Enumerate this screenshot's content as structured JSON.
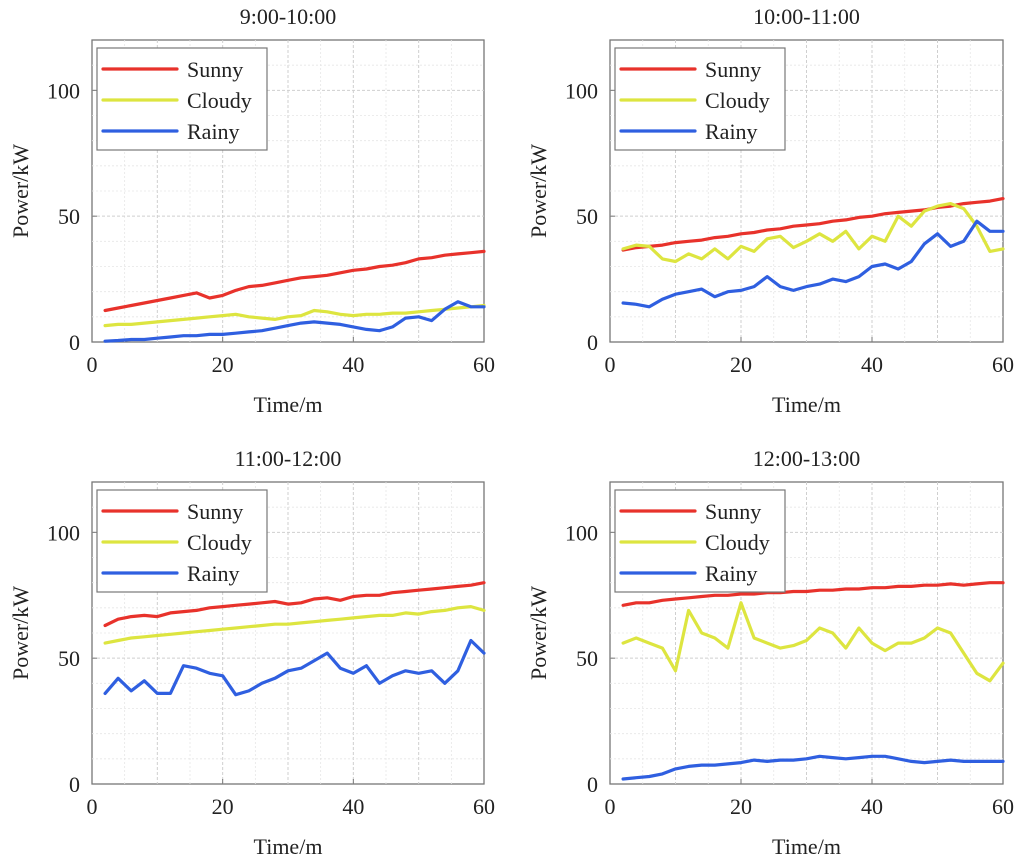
{
  "colors": {
    "Sunny": "#e8322b",
    "Cloudy": "#dde540",
    "Rainy": "#2f5fe0"
  },
  "chart_data": [
    {
      "type": "line",
      "title": "9:00-10:00",
      "xlabel": "Time/m",
      "ylabel": "Power/kW",
      "xlim": [
        0,
        60
      ],
      "ylim": [
        0,
        120
      ],
      "xticks": [
        0,
        20,
        40,
        60
      ],
      "yticks": [
        0,
        50,
        100
      ],
      "grid": true,
      "legend": "top-left",
      "series": [
        {
          "name": "Sunny",
          "x": [
            2,
            4,
            6,
            8,
            10,
            12,
            14,
            16,
            18,
            20,
            22,
            24,
            26,
            28,
            30,
            32,
            34,
            36,
            38,
            40,
            42,
            44,
            46,
            48,
            50,
            52,
            54,
            56,
            58,
            60
          ],
          "values": [
            12.5,
            13.5,
            14.5,
            15.5,
            16.5,
            17.5,
            18.5,
            19.5,
            17.5,
            18.5,
            20.5,
            22,
            22.5,
            23.5,
            24.5,
            25.5,
            26,
            26.5,
            27.5,
            28.5,
            29,
            30,
            30.5,
            31.5,
            33,
            33.5,
            34.5,
            35,
            35.5,
            36
          ]
        },
        {
          "name": "Cloudy",
          "x": [
            2,
            4,
            6,
            8,
            10,
            12,
            14,
            16,
            18,
            20,
            22,
            24,
            26,
            28,
            30,
            32,
            34,
            36,
            38,
            40,
            42,
            44,
            46,
            48,
            50,
            52,
            54,
            56,
            58,
            60
          ],
          "values": [
            6.5,
            7,
            7,
            7.5,
            8,
            8.5,
            9,
            9.5,
            10,
            10.5,
            11,
            10,
            9.5,
            9,
            10,
            10.5,
            12.5,
            12,
            11,
            10.5,
            11,
            11,
            11.5,
            11.5,
            12,
            12.5,
            13,
            13.5,
            14,
            14.5
          ]
        },
        {
          "name": "Rainy",
          "x": [
            2,
            4,
            6,
            8,
            10,
            12,
            14,
            16,
            18,
            20,
            22,
            24,
            26,
            28,
            30,
            32,
            34,
            36,
            38,
            40,
            42,
            44,
            46,
            48,
            50,
            52,
            54,
            56,
            58,
            60
          ],
          "values": [
            0.3,
            0.6,
            1,
            1,
            1.5,
            2,
            2.5,
            2.5,
            3,
            3,
            3.5,
            4,
            4.5,
            5.5,
            6.5,
            7.5,
            8,
            7.5,
            7,
            6,
            5,
            4.5,
            6,
            9.5,
            10,
            8.5,
            13,
            16,
            14,
            14
          ]
        }
      ]
    },
    {
      "type": "line",
      "title": "10:00-11:00",
      "xlabel": "Time/m",
      "ylabel": "Power/kW",
      "xlim": [
        0,
        60
      ],
      "ylim": [
        0,
        120
      ],
      "xticks": [
        0,
        20,
        40,
        60
      ],
      "yticks": [
        0,
        50,
        100
      ],
      "grid": true,
      "legend": "top-left",
      "series": [
        {
          "name": "Sunny",
          "x": [
            2,
            4,
            6,
            8,
            10,
            12,
            14,
            16,
            18,
            20,
            22,
            24,
            26,
            28,
            30,
            32,
            34,
            36,
            38,
            40,
            42,
            44,
            46,
            48,
            50,
            52,
            54,
            56,
            58,
            60
          ],
          "values": [
            36.5,
            37.5,
            38,
            38.5,
            39.5,
            40,
            40.5,
            41.5,
            42,
            43,
            43.5,
            44.5,
            45,
            46,
            46.5,
            47,
            48,
            48.5,
            49.5,
            50,
            51,
            51.5,
            52,
            52.5,
            53.5,
            54,
            55,
            55.5,
            56,
            57
          ]
        },
        {
          "name": "Cloudy",
          "x": [
            2,
            4,
            6,
            8,
            10,
            12,
            14,
            16,
            18,
            20,
            22,
            24,
            26,
            28,
            30,
            32,
            34,
            36,
            38,
            40,
            42,
            44,
            46,
            48,
            50,
            52,
            54,
            56,
            58,
            60
          ],
          "values": [
            37,
            38.5,
            38,
            33,
            32,
            35,
            33,
            37,
            33,
            38,
            36,
            41,
            42,
            37.5,
            40,
            43,
            40,
            44,
            37,
            42,
            40,
            50,
            46,
            52,
            54,
            55,
            53,
            46,
            36,
            37
          ]
        },
        {
          "name": "Rainy",
          "x": [
            2,
            4,
            6,
            8,
            10,
            12,
            14,
            16,
            18,
            20,
            22,
            24,
            26,
            28,
            30,
            32,
            34,
            36,
            38,
            40,
            42,
            44,
            46,
            48,
            50,
            52,
            54,
            56,
            58,
            60
          ],
          "values": [
            15.5,
            15,
            14,
            17,
            19,
            20,
            21,
            18,
            20,
            20.5,
            22,
            26,
            22,
            20.5,
            22,
            23,
            25,
            24,
            26,
            30,
            31,
            29,
            32,
            39,
            43,
            38,
            40,
            48,
            44,
            44
          ]
        }
      ]
    },
    {
      "type": "line",
      "title": "11:00-12:00",
      "xlabel": "Time/m",
      "ylabel": "Power/kW",
      "xlim": [
        0,
        60
      ],
      "ylim": [
        0,
        120
      ],
      "xticks": [
        0,
        20,
        40,
        60
      ],
      "yticks": [
        0,
        50,
        100
      ],
      "grid": true,
      "legend": "top-left",
      "series": [
        {
          "name": "Sunny",
          "x": [
            2,
            4,
            6,
            8,
            10,
            12,
            14,
            16,
            18,
            20,
            22,
            24,
            26,
            28,
            30,
            32,
            34,
            36,
            38,
            40,
            42,
            44,
            46,
            48,
            50,
            52,
            54,
            56,
            58,
            60
          ],
          "values": [
            63,
            65.5,
            66.5,
            67,
            66.5,
            68,
            68.5,
            69,
            70,
            70.5,
            71,
            71.5,
            72,
            72.5,
            71.5,
            72,
            73.5,
            74,
            73,
            74.5,
            75,
            75,
            76,
            76.5,
            77,
            77.5,
            78,
            78.5,
            79,
            80
          ]
        },
        {
          "name": "Cloudy",
          "x": [
            2,
            4,
            6,
            8,
            10,
            12,
            14,
            16,
            18,
            20,
            22,
            24,
            26,
            28,
            30,
            32,
            34,
            36,
            38,
            40,
            42,
            44,
            46,
            48,
            50,
            52,
            54,
            56,
            58,
            60
          ],
          "values": [
            56,
            57,
            58,
            58.5,
            59,
            59.5,
            60,
            60.5,
            61,
            61.5,
            62,
            62.5,
            63,
            63.5,
            63.5,
            64,
            64.5,
            65,
            65.5,
            66,
            66.5,
            67,
            67,
            68,
            67.5,
            68.5,
            69,
            70,
            70.5,
            69
          ]
        },
        {
          "name": "Rainy",
          "x": [
            2,
            4,
            6,
            8,
            10,
            12,
            14,
            16,
            18,
            20,
            22,
            24,
            26,
            28,
            30,
            32,
            34,
            36,
            38,
            40,
            42,
            44,
            46,
            48,
            50,
            52,
            54,
            56,
            58,
            60
          ],
          "values": [
            36,
            42,
            37,
            41,
            36,
            36,
            47,
            46,
            44,
            43,
            35.5,
            37,
            40,
            42,
            45,
            46,
            49,
            52,
            46,
            44,
            47,
            40,
            43,
            45,
            44,
            45,
            40,
            45,
            57,
            52
          ]
        }
      ]
    },
    {
      "type": "line",
      "title": "12:00-13:00",
      "xlabel": "Time/m",
      "ylabel": "Power/kW",
      "xlim": [
        0,
        60
      ],
      "ylim": [
        0,
        120
      ],
      "xticks": [
        0,
        20,
        40,
        60
      ],
      "yticks": [
        0,
        50,
        100
      ],
      "grid": true,
      "legend": "top-left",
      "series": [
        {
          "name": "Sunny",
          "x": [
            2,
            4,
            6,
            8,
            10,
            12,
            14,
            16,
            18,
            20,
            22,
            24,
            26,
            28,
            30,
            32,
            34,
            36,
            38,
            40,
            42,
            44,
            46,
            48,
            50,
            52,
            54,
            56,
            58,
            60
          ],
          "values": [
            71,
            72,
            72,
            73,
            73.5,
            74,
            74.5,
            75,
            75,
            75.5,
            75.5,
            76,
            76,
            76.5,
            76.5,
            77,
            77,
            77.5,
            77.5,
            78,
            78,
            78.5,
            78.5,
            79,
            79,
            79.5,
            79,
            79.5,
            80,
            80
          ]
        },
        {
          "name": "Cloudy",
          "x": [
            2,
            4,
            6,
            8,
            10,
            12,
            14,
            16,
            18,
            20,
            22,
            24,
            26,
            28,
            30,
            32,
            34,
            36,
            38,
            40,
            42,
            44,
            46,
            48,
            50,
            52,
            54,
            56,
            58,
            60
          ],
          "values": [
            56,
            58,
            56,
            54,
            45,
            69,
            60,
            58,
            54,
            72,
            58,
            56,
            54,
            55,
            57,
            62,
            60,
            54,
            62,
            56,
            53,
            56,
            56,
            58,
            62,
            60,
            52,
            44,
            41,
            48
          ]
        },
        {
          "name": "Rainy",
          "x": [
            2,
            4,
            6,
            8,
            10,
            12,
            14,
            16,
            18,
            20,
            22,
            24,
            26,
            28,
            30,
            32,
            34,
            36,
            38,
            40,
            42,
            44,
            46,
            48,
            50,
            52,
            54,
            56,
            58,
            60
          ],
          "values": [
            2,
            2.5,
            3,
            4,
            6,
            7,
            7.5,
            7.5,
            8,
            8.5,
            9.5,
            9,
            9.5,
            9.5,
            10,
            11,
            10.5,
            10,
            10.5,
            11,
            11,
            10,
            9,
            8.5,
            9,
            9.5,
            9,
            9,
            9,
            9
          ]
        }
      ]
    }
  ]
}
